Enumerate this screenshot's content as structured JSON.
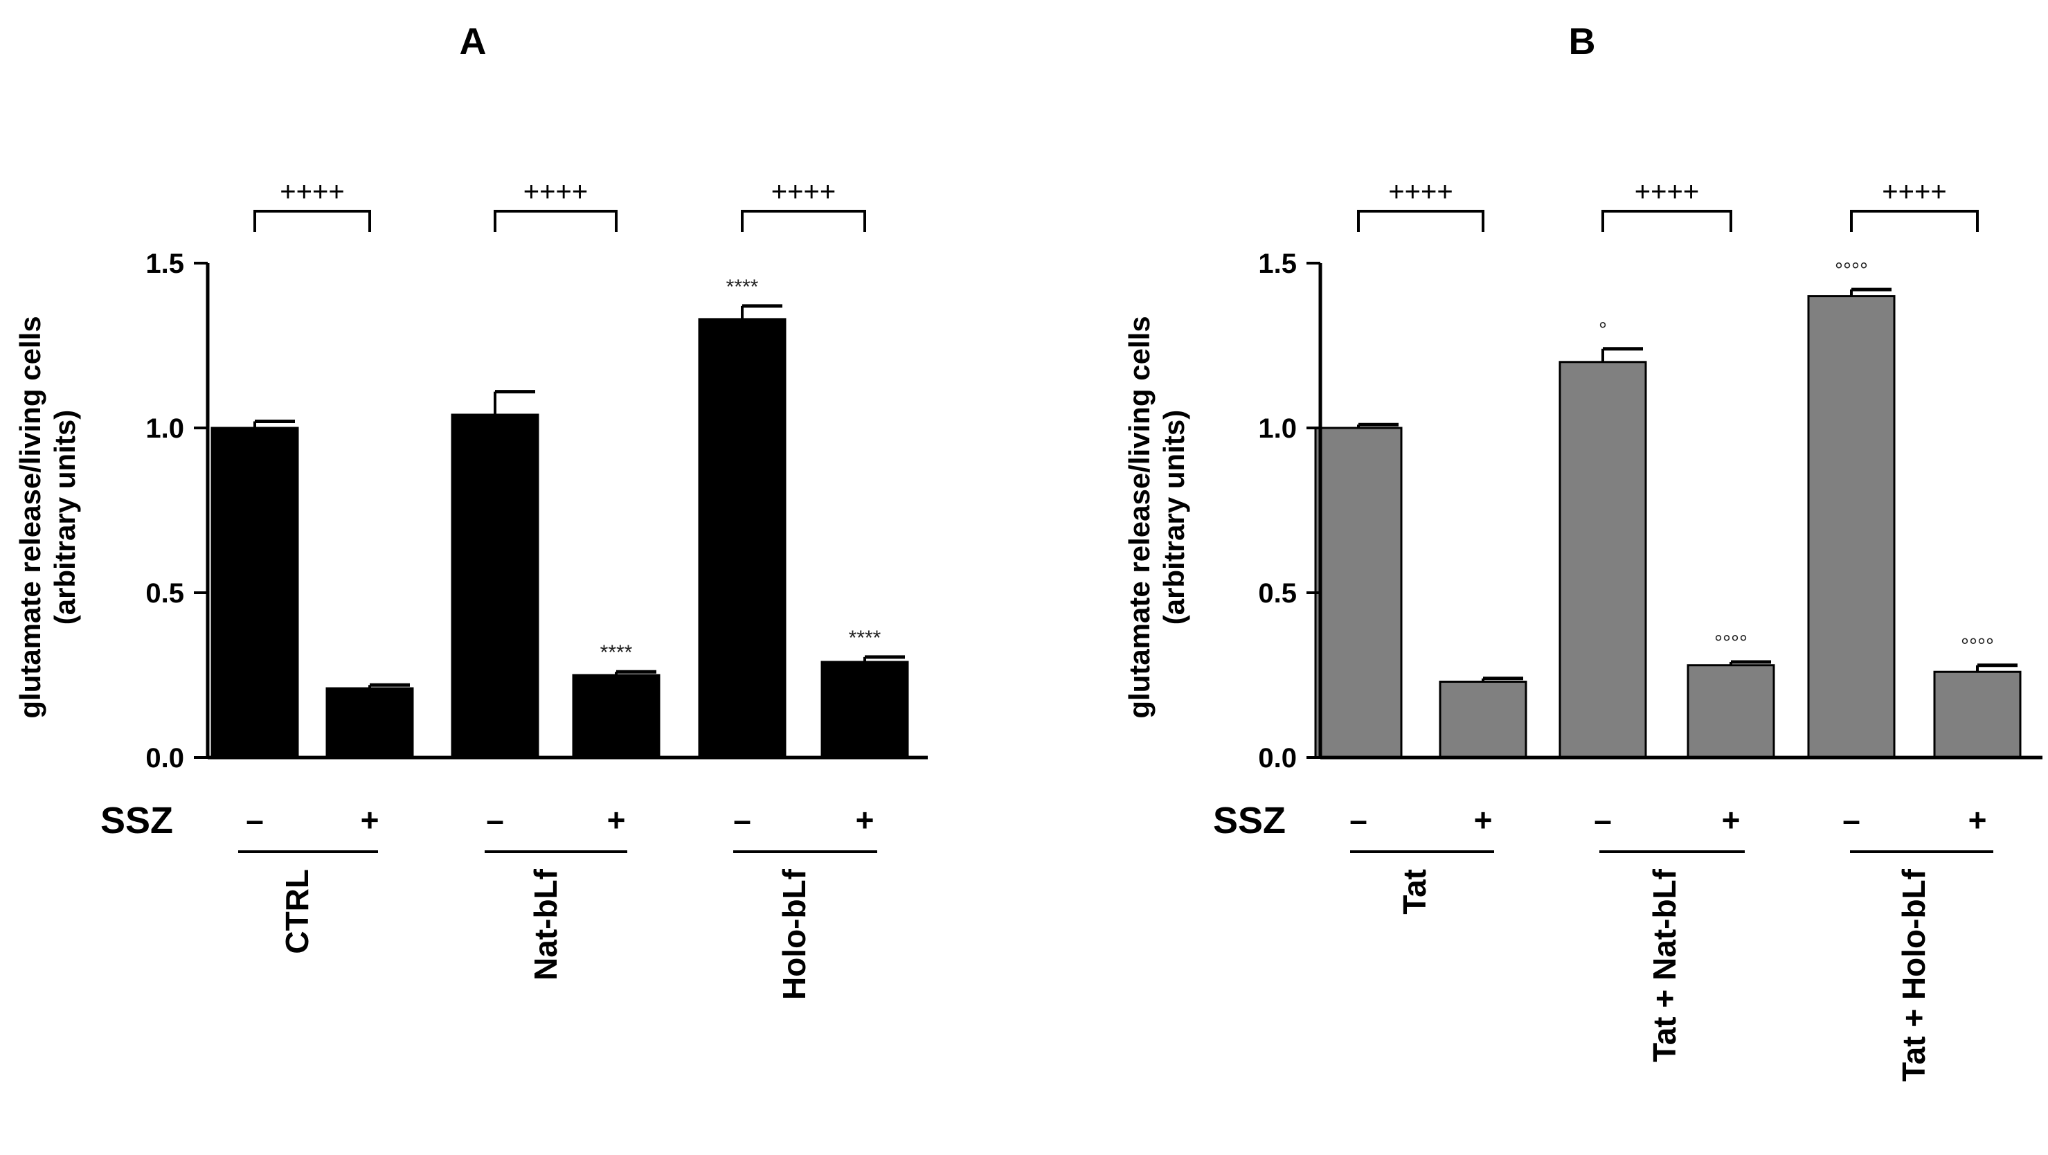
{
  "chart_data": [
    {
      "type": "bar",
      "panel_label": "A",
      "ylabel_line1": "glutamate release/living cells",
      "ylabel_line2": "(arbitrary units)",
      "ylim": [
        0,
        1.5
      ],
      "yticks": [
        "0.0",
        "0.5",
        "1.0",
        "1.5"
      ],
      "ytick_values": [
        0,
        0.5,
        1.0,
        1.5
      ],
      "bar_color": "#000000",
      "treatment_label": "SSZ",
      "bars": [
        {
          "group": "CTRL",
          "ssz": "–",
          "value": 1.0,
          "error": 0.02,
          "annotation": ""
        },
        {
          "group": "CTRL",
          "ssz": "+",
          "value": 0.21,
          "error": 0.01,
          "annotation": ""
        },
        {
          "group": "Nat-bLf",
          "ssz": "–",
          "value": 1.04,
          "error": 0.07,
          "annotation": ""
        },
        {
          "group": "Nat-bLf",
          "ssz": "+",
          "value": 0.25,
          "error": 0.01,
          "annotation": "****"
        },
        {
          "group": "Holo-bLf",
          "ssz": "–",
          "value": 1.33,
          "error": 0.04,
          "annotation": "****"
        },
        {
          "group": "Holo-bLf",
          "ssz": "+",
          "value": 0.29,
          "error": 0.015,
          "annotation": "****"
        }
      ],
      "groups": [
        "CTRL",
        "Nat-bLf",
        "Holo-bLf"
      ],
      "brackets": [
        "++++",
        "++++",
        "++++"
      ]
    },
    {
      "type": "bar",
      "panel_label": "B",
      "ylabel_line1": "glutamate release/living cells",
      "ylabel_line2": "(arbitrary units)",
      "ylim": [
        0,
        1.5
      ],
      "yticks": [
        "0.0",
        "0.5",
        "1.0",
        "1.5"
      ],
      "ytick_values": [
        0,
        0.5,
        1.0,
        1.5
      ],
      "bar_color": "#808080",
      "treatment_label": "SSZ",
      "bars": [
        {
          "group": "Tat",
          "ssz": "–",
          "value": 1.0,
          "error": 0.01,
          "annotation": ""
        },
        {
          "group": "Tat",
          "ssz": "+",
          "value": 0.23,
          "error": 0.01,
          "annotation": ""
        },
        {
          "group": "Tat + Nat-bLf",
          "ssz": "–",
          "value": 1.2,
          "error": 0.04,
          "annotation": "°"
        },
        {
          "group": "Tat + Nat-bLf",
          "ssz": "+",
          "value": 0.28,
          "error": 0.01,
          "annotation": "°°°°"
        },
        {
          "group": "Tat + Holo-bLf",
          "ssz": "–",
          "value": 1.4,
          "error": 0.02,
          "annotation": "°°°°"
        },
        {
          "group": "Tat + Holo-bLf",
          "ssz": "+",
          "value": 0.26,
          "error": 0.02,
          "annotation": "°°°°"
        }
      ],
      "groups": [
        "Tat",
        "Tat + Nat-bLf",
        "Tat + Holo-bLf"
      ],
      "brackets": [
        "++++",
        "++++",
        "++++"
      ]
    }
  ]
}
